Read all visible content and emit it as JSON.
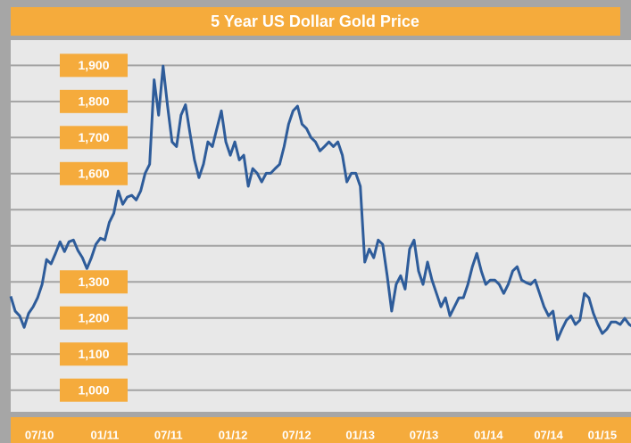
{
  "chart_data": {
    "type": "line",
    "title": "5 Year US Dollar Gold Price",
    "series": [
      {
        "name": "Gold Price",
        "color": "#2e5c9a",
        "values": [
          1260,
          1219,
          1206,
          1174,
          1213,
          1231,
          1256,
          1293,
          1362,
          1350,
          1379,
          1411,
          1384,
          1411,
          1416,
          1387,
          1367,
          1337,
          1367,
          1404,
          1421,
          1416,
          1465,
          1490,
          1552,
          1515,
          1535,
          1540,
          1527,
          1552,
          1601,
          1626,
          1860,
          1762,
          1898,
          1787,
          1688,
          1675,
          1762,
          1791,
          1712,
          1638,
          1589,
          1626,
          1688,
          1675,
          1725,
          1774,
          1688,
          1651,
          1688,
          1638,
          1651,
          1565,
          1614,
          1601,
          1577,
          1601,
          1601,
          1614,
          1626,
          1675,
          1737,
          1774,
          1787,
          1737,
          1725,
          1700,
          1688,
          1663,
          1675,
          1688,
          1675,
          1688,
          1651,
          1577,
          1601,
          1601,
          1565,
          1355,
          1391,
          1367,
          1416,
          1404,
          1317,
          1219,
          1293,
          1317,
          1280,
          1391,
          1416,
          1330,
          1293,
          1355,
          1305,
          1268,
          1231,
          1256,
          1206,
          1231,
          1256,
          1256,
          1293,
          1342,
          1379,
          1330,
          1293,
          1305,
          1305,
          1293,
          1268,
          1293,
          1330,
          1342,
          1305,
          1298,
          1293,
          1305,
          1268,
          1231,
          1206,
          1219,
          1140,
          1169,
          1194,
          1206,
          1182,
          1194,
          1268,
          1256,
          1213,
          1182,
          1157,
          1169,
          1189,
          1189,
          1182,
          1199,
          1182,
          1174
        ]
      }
    ],
    "xlim": [
      0,
      138
    ],
    "xticks": [
      {
        "value": 6.4,
        "label": "07/10"
      },
      {
        "value": 21,
        "label": "01/11"
      },
      {
        "value": 35.2,
        "label": "07/11"
      },
      {
        "value": 49.6,
        "label": "01/12"
      },
      {
        "value": 63.8,
        "label": "07/12"
      },
      {
        "value": 78,
        "label": "01/13"
      },
      {
        "value": 92.2,
        "label": "07/13"
      },
      {
        "value": 106.6,
        "label": "01/14"
      },
      {
        "value": 120,
        "label": "07/14"
      },
      {
        "value": 132,
        "label": "01/15"
      }
    ],
    "ylim": [
      940,
      1970
    ],
    "yticks": [
      {
        "value": 1000,
        "label": "1,000"
      },
      {
        "value": 1100,
        "label": "1,100"
      },
      {
        "value": 1200,
        "label": "1,200"
      },
      {
        "value": 1300,
        "label": "1,300"
      },
      1400,
      1500,
      {
        "value": 1600,
        "label": "1,600"
      },
      {
        "value": 1700,
        "label": "1,700"
      },
      {
        "value": 1800,
        "label": "1,800"
      },
      {
        "value": 1900,
        "label": "1,900"
      }
    ],
    "grid": true
  }
}
